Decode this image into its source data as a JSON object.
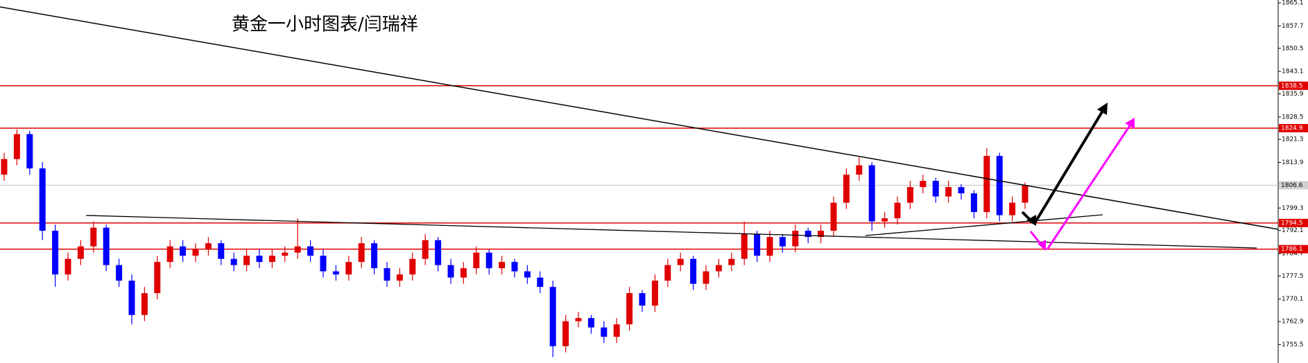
{
  "chart_data": {
    "type": "candlestick",
    "title": "黄金一小时图表/闫瑞祥",
    "ylim": [
      1749.6,
      1866.0
    ],
    "yticks": [
      1865.1,
      1857.7,
      1850.5,
      1843.1,
      1835.9,
      1828.5,
      1821.3,
      1813.9,
      1799.3,
      1792.1,
      1784.7,
      1777.5,
      1770.1,
      1762.9,
      1755.5
    ],
    "levels": [
      1838.5,
      1824.9,
      1794.5,
      1786.1
    ],
    "level_color": "#e00000",
    "last_price": 1806.6,
    "up_color": "#e00000",
    "down_color": "#0000ff",
    "open": [
      1810,
      1815,
      1823,
      1812,
      1792,
      1778,
      1783,
      1787,
      1793,
      1781,
      1776,
      1765,
      1772,
      1782,
      1787,
      1784,
      1786,
      1788,
      1783,
      1781,
      1784,
      1782,
      1784,
      1785,
      1787,
      1784,
      1779,
      1778,
      1782,
      1788,
      1780,
      1776,
      1778,
      1783,
      1789,
      1781,
      1777,
      1780,
      1785,
      1780,
      1782,
      1779,
      1777,
      1774,
      1755,
      1763,
      1764,
      1761,
      1758,
      1762,
      1772,
      1768,
      1776,
      1781,
      1783,
      1775,
      1779,
      1781,
      1783,
      1791,
      1784,
      1790,
      1787,
      1792,
      1790,
      1792,
      1801,
      1810,
      1813,
      1795,
      1796,
      1801,
      1806,
      1808,
      1803,
      1806,
      1804,
      1798,
      1816,
      1797,
      1801
    ],
    "high": [
      1817,
      1824.5,
      1824,
      1814,
      1794,
      1785,
      1789,
      1795,
      1794,
      1783,
      1778,
      1774,
      1784,
      1789,
      1789,
      1788,
      1790,
      1789,
      1785,
      1786,
      1786,
      1786,
      1787,
      1796,
      1789,
      1786,
      1781,
      1784,
      1790,
      1789,
      1782,
      1780,
      1785,
      1791,
      1790,
      1783,
      1782,
      1787,
      1786,
      1784,
      1783,
      1781,
      1779,
      1776,
      1765,
      1766,
      1765,
      1763,
      1764,
      1774,
      1773,
      1778,
      1783,
      1785,
      1784,
      1781,
      1783,
      1785,
      1795,
      1792,
      1792,
      1791,
      1794,
      1793,
      1794,
      1803,
      1812,
      1815.5,
      1814,
      1798,
      1803,
      1808,
      1810,
      1809,
      1808,
      1807,
      1805,
      1818.5,
      1817,
      1803,
      1807.5
    ],
    "low": [
      1808,
      1813,
      1810,
      1789,
      1774,
      1776,
      1781,
      1785,
      1779,
      1774,
      1762,
      1763,
      1770,
      1780,
      1782,
      1782,
      1784,
      1781,
      1779,
      1779,
      1780,
      1780,
      1782,
      1783,
      1782,
      1777,
      1776,
      1776,
      1780,
      1778,
      1774,
      1774,
      1776,
      1781,
      1779,
      1775,
      1775,
      1778,
      1778,
      1778,
      1777,
      1775,
      1772,
      1751.5,
      1753,
      1761,
      1759,
      1756,
      1756,
      1760,
      1766,
      1766,
      1774,
      1779,
      1773,
      1773,
      1777,
      1779,
      1781,
      1782,
      1782,
      1785,
      1785,
      1788,
      1788,
      1790,
      1799,
      1808,
      1792,
      1793,
      1794,
      1799,
      1804,
      1801,
      1801,
      1802,
      1796,
      1796,
      1795,
      1795,
      1799
    ],
    "close": [
      1815,
      1823,
      1812,
      1792,
      1778,
      1783,
      1787,
      1793,
      1781,
      1776,
      1765,
      1772,
      1782,
      1787,
      1784,
      1786,
      1788,
      1783,
      1781,
      1784,
      1782,
      1784,
      1785,
      1787,
      1784,
      1779,
      1778,
      1782,
      1788,
      1780,
      1776,
      1778,
      1783,
      1789,
      1781,
      1777,
      1780,
      1785,
      1780,
      1782,
      1779,
      1777,
      1774,
      1755,
      1763,
      1764,
      1761,
      1758,
      1762,
      1772,
      1768,
      1776,
      1781,
      1783,
      1775,
      1779,
      1781,
      1783,
      1791,
      1784,
      1790,
      1787,
      1792,
      1790,
      1792,
      1801,
      1810,
      1813,
      1795,
      1796,
      1801,
      1806,
      1808,
      1803,
      1806,
      1804,
      1798,
      1816,
      1797,
      1801,
      1806.6
    ]
  }
}
